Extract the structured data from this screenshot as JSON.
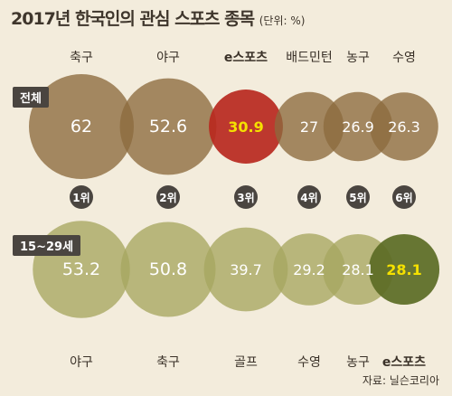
{
  "title": "2017년 한국인의 관심 스포츠 종목",
  "unit": "(단위: %)",
  "source": "자료: 닐슨코리아",
  "colors": {
    "background": "#f3ecdc",
    "all_bubble": "#8c6a3e",
    "all_highlight": "#b8281e",
    "young_bubble": "#a7a660",
    "young_highlight": "#5b6b24",
    "highlight_text": "#f5e100",
    "rank_circle": "#4a4540"
  },
  "chart_data": {
    "type": "bubble",
    "title": "2017년 한국인의 관심 스포츠 종목",
    "unit": "%",
    "ranks": [
      "1위",
      "2위",
      "3위",
      "4위",
      "5위",
      "6위"
    ],
    "series": [
      {
        "name": "전체",
        "categories": [
          "축구",
          "야구",
          "e스포츠",
          "배드민턴",
          "농구",
          "수영"
        ],
        "values": [
          62,
          52.6,
          30.9,
          27,
          26.9,
          26.3
        ],
        "highlight_index": 2
      },
      {
        "name": "15~29세",
        "categories": [
          "야구",
          "축구",
          "골프",
          "수영",
          "농구",
          "e스포츠"
        ],
        "values": [
          53.2,
          50.8,
          39.7,
          29.2,
          28.1,
          28.1
        ],
        "highlight_index": 5
      }
    ]
  }
}
